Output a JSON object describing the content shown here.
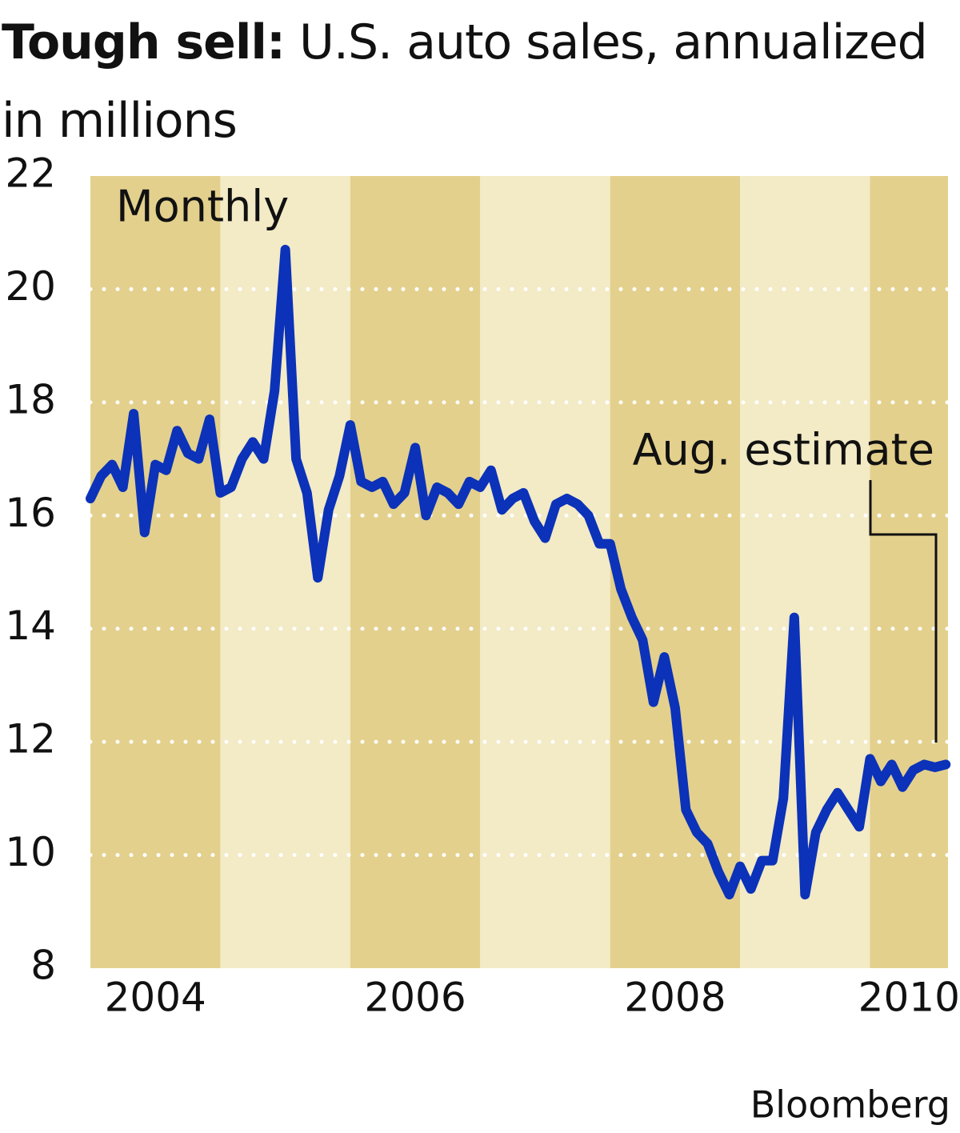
{
  "chart_data": {
    "type": "line",
    "title": "Tough sell:",
    "subtitle": "U.S. auto sales, annualized in millions",
    "annotations": [
      "Monthly",
      "Aug. estimate"
    ],
    "source": "Bloomberg",
    "x": [
      2004,
      2004.083,
      2004.167,
      2004.25,
      2004.333,
      2004.417,
      2004.5,
      2004.583,
      2004.667,
      2004.75,
      2004.833,
      2004.917,
      2005,
      2005.083,
      2005.167,
      2005.25,
      2005.333,
      2005.417,
      2005.5,
      2005.583,
      2005.667,
      2005.75,
      2005.833,
      2005.917,
      2006,
      2006.083,
      2006.167,
      2006.25,
      2006.333,
      2006.417,
      2006.5,
      2006.583,
      2006.667,
      2006.75,
      2006.833,
      2006.917,
      2007,
      2007.083,
      2007.167,
      2007.25,
      2007.333,
      2007.417,
      2007.5,
      2007.583,
      2007.667,
      2007.75,
      2007.833,
      2007.917,
      2008,
      2008.083,
      2008.167,
      2008.25,
      2008.333,
      2008.417,
      2008.5,
      2008.583,
      2008.667,
      2008.75,
      2008.833,
      2008.917,
      2009,
      2009.083,
      2009.167,
      2009.25,
      2009.333,
      2009.417,
      2009.5,
      2009.583,
      2009.667,
      2009.75,
      2009.833,
      2009.917,
      2010,
      2010.083,
      2010.167,
      2010.25,
      2010.333,
      2010.417,
      2010.5,
      2010.583
    ],
    "series": [
      {
        "name": "Monthly",
        "color": "#0b32b8",
        "values": [
          16.3,
          16.7,
          16.9,
          16.5,
          17.8,
          15.7,
          16.9,
          16.8,
          17.5,
          17.1,
          17.0,
          17.7,
          16.4,
          16.5,
          17.0,
          17.3,
          17.0,
          18.2,
          20.7,
          17.0,
          16.4,
          14.9,
          16.1,
          16.7,
          17.6,
          16.6,
          16.5,
          16.6,
          16.2,
          16.4,
          17.2,
          16.0,
          16.5,
          16.4,
          16.2,
          16.6,
          16.5,
          16.8,
          16.1,
          16.3,
          16.4,
          15.9,
          15.6,
          16.2,
          16.3,
          16.2,
          16.0,
          15.5,
          15.5,
          14.7,
          14.2,
          13.8,
          12.7,
          13.5,
          12.6,
          10.8,
          10.4,
          10.2,
          9.7,
          9.3,
          9.8,
          9.4,
          9.9,
          9.9,
          11.0,
          14.2,
          9.3,
          10.4,
          10.8,
          11.1,
          10.8,
          10.5,
          11.7,
          11.3,
          11.6,
          11.2,
          11.5,
          11.6,
          11.55,
          11.6
        ]
      }
    ],
    "xlim": [
      2004,
      2010.6
    ],
    "xticks": [
      {
        "value": 2004.5,
        "label": "2004"
      },
      {
        "value": 2006.5,
        "label": "2006"
      },
      {
        "value": 2008.5,
        "label": "2008"
      },
      {
        "value": 2010.3,
        "label": "2010"
      }
    ],
    "ylim": [
      8,
      22
    ],
    "yticks": [
      8,
      10,
      12,
      14,
      16,
      18,
      20,
      22
    ],
    "grid": true,
    "band_colors": [
      "#e3d08d",
      "#f3eac6"
    ]
  }
}
